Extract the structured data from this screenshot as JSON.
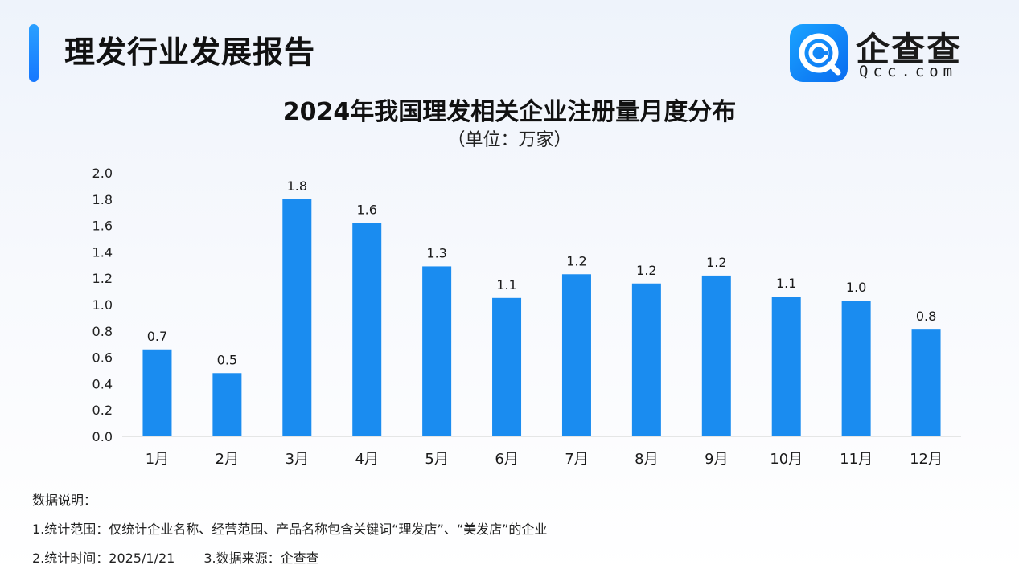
{
  "header": {
    "title": "理发行业发展报告"
  },
  "logo": {
    "name_cn": "企查查",
    "name_en": "Qcc.com",
    "brand_color": "#1677ff"
  },
  "chart_data": {
    "type": "bar",
    "title": "2024年我国理发相关企业注册量月度分布",
    "subtitle": "（单位：万家）",
    "categories": [
      "1月",
      "2月",
      "3月",
      "4月",
      "5月",
      "6月",
      "7月",
      "8月",
      "9月",
      "10月",
      "11月",
      "12月"
    ],
    "values": [
      0.66,
      0.48,
      1.8,
      1.62,
      1.29,
      1.05,
      1.23,
      1.16,
      1.22,
      1.06,
      1.03,
      0.81
    ],
    "labels": [
      "0.7",
      "0.5",
      "1.8",
      "1.6",
      "1.3",
      "1.1",
      "1.2",
      "1.2",
      "1.2",
      "1.1",
      "1.0",
      "0.8"
    ],
    "ylim": [
      0,
      2.0
    ],
    "yticks": [
      "0.0",
      "0.2",
      "0.4",
      "0.6",
      "0.8",
      "1.0",
      "1.2",
      "1.4",
      "1.6",
      "1.8",
      "2.0"
    ],
    "xlabel": "",
    "ylabel": "",
    "grid": false,
    "bar_color": "#1a8cf0"
  },
  "notes": {
    "heading": "数据说明：",
    "scope": "1.统计范围：仅统计企业名称、经营范围、产品名称包含关键词“理发店”、“美发店”的企业",
    "time": "2.统计时间：2025/1/21",
    "source": "3.数据来源：企查查"
  }
}
